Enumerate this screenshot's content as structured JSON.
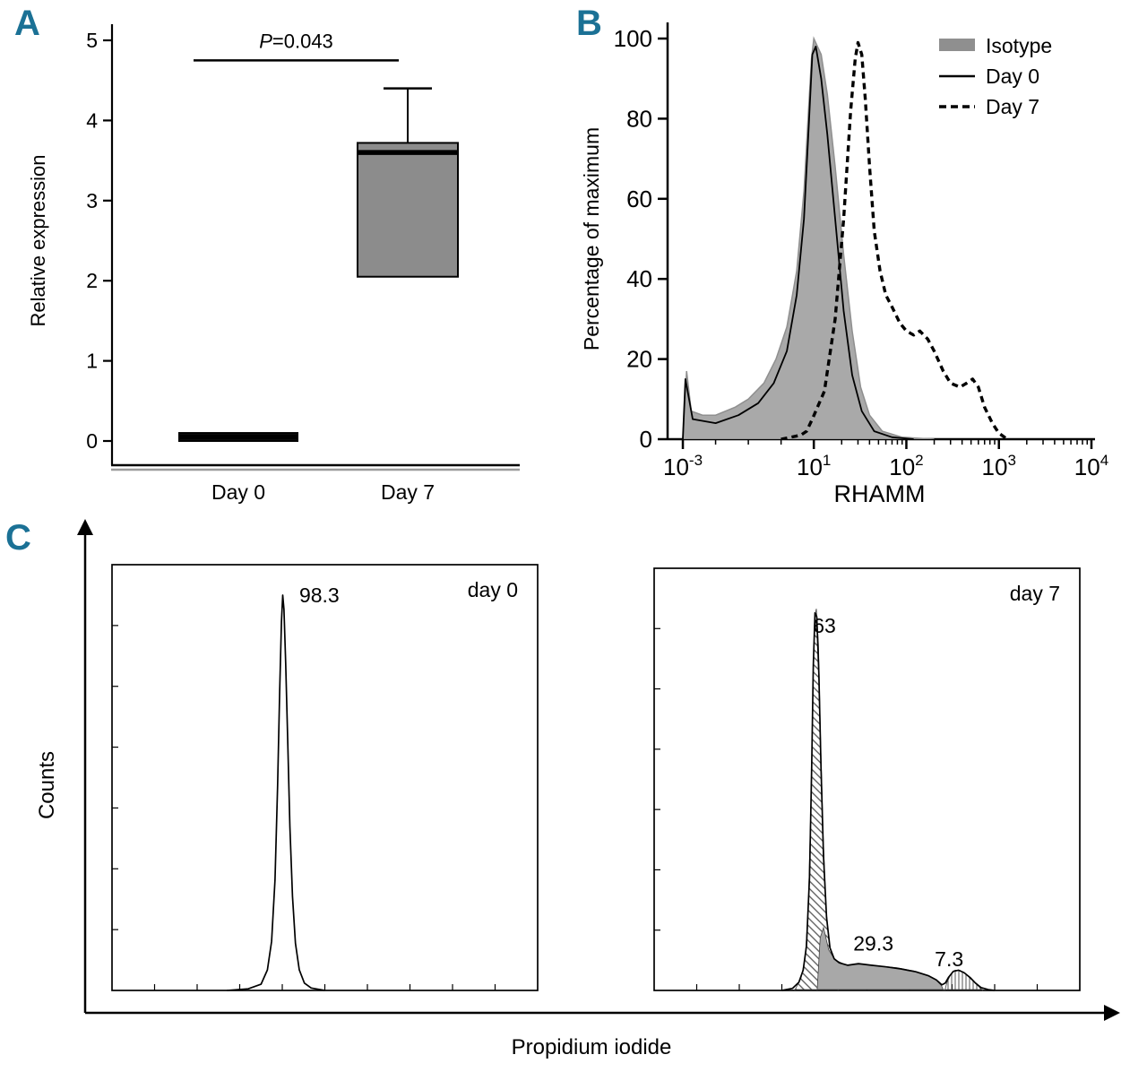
{
  "figure": {
    "background": "#ffffff",
    "accent_color": "#1b7195",
    "panel_labels": {
      "a": "A",
      "b": "B",
      "c": "C"
    }
  },
  "panelC": {
    "ylabel": "Counts",
    "xlabel": "Propidium iodide"
  },
  "chart_data": [
    {
      "id": "panel-a",
      "type": "box",
      "title": "",
      "xlabel": "",
      "ylabel": "Relative expression",
      "ylim": [
        0,
        5
      ],
      "yticks": [
        0,
        1,
        2,
        3,
        4,
        5
      ],
      "categories": [
        "Day 0",
        "Day 7"
      ],
      "boxes": [
        {
          "category": "Day 0",
          "whisker_low": 0.0,
          "q1": 0.0,
          "median": 0.05,
          "q3": 0.1,
          "whisker_high": 0.1,
          "fill": "#111111"
        },
        {
          "category": "Day 7",
          "whisker_low": 2.05,
          "q1": 2.05,
          "median": 3.6,
          "q3": 3.72,
          "whisker_high": 4.4,
          "fill": "#8c8c8c"
        }
      ],
      "significance": {
        "label": "P=0.043",
        "italic": "P",
        "rest": "=0.043",
        "bar_y": 4.75
      }
    },
    {
      "id": "panel-b",
      "type": "line",
      "ylabel": "Percentage of maximum",
      "xlabel": "RHAMM",
      "ylim": [
        0,
        100
      ],
      "yticks": [
        0,
        20,
        40,
        60,
        80,
        100
      ],
      "x_scale": "biexponential-log",
      "x_major_ticks": [
        {
          "label_base": "10",
          "label_exp": "-3",
          "log10": -3
        },
        {
          "label_base": "10",
          "label_exp": "1",
          "log10": 1
        },
        {
          "label_base": "10",
          "label_exp": "2",
          "log10": 2
        },
        {
          "label_base": "10",
          "label_exp": "3",
          "log10": 3
        },
        {
          "label_base": "10",
          "label_exp": "4",
          "log10": 4
        }
      ],
      "legend": [
        {
          "label": "Isotype",
          "swatch": "filled",
          "color": "#8f8f8f"
        },
        {
          "label": "Day 0",
          "swatch": "solid-line",
          "color": "#000000"
        },
        {
          "label": "Day 7",
          "swatch": "dashed-line",
          "color": "#000000"
        }
      ],
      "series": [
        {
          "name": "Isotype",
          "style": "filled",
          "fill": "#a9a9a9",
          "stroke": "#8f8f8f",
          "points": [
            [
              0.001,
              0
            ],
            [
              0.0013,
              17
            ],
            [
              0.0018,
              7
            ],
            [
              0.004,
              6
            ],
            [
              0.01,
              6
            ],
            [
              0.04,
              8
            ],
            [
              0.1,
              10
            ],
            [
              0.3,
              14
            ],
            [
              0.7,
              20
            ],
            [
              1.5,
              28
            ],
            [
              3,
              42
            ],
            [
              5,
              62
            ],
            [
              7,
              83
            ],
            [
              8.5,
              95
            ],
            [
              10,
              100
            ],
            [
              12,
              96
            ],
            [
              14,
              86
            ],
            [
              17,
              68
            ],
            [
              21,
              46
            ],
            [
              26,
              27
            ],
            [
              32,
              13
            ],
            [
              40,
              6
            ],
            [
              55,
              2
            ],
            [
              90,
              0.5
            ],
            [
              200,
              0
            ]
          ]
        },
        {
          "name": "Day 0",
          "style": "solid",
          "stroke": "#000000",
          "points": [
            [
              0.001,
              0
            ],
            [
              0.0012,
              15
            ],
            [
              0.002,
              5
            ],
            [
              0.01,
              4
            ],
            [
              0.05,
              6
            ],
            [
              0.2,
              9
            ],
            [
              0.6,
              14
            ],
            [
              1.5,
              22
            ],
            [
              3,
              36
            ],
            [
              5,
              55
            ],
            [
              7,
              78
            ],
            [
              9,
              96
            ],
            [
              10.5,
              98
            ],
            [
              12,
              90
            ],
            [
              14,
              76
            ],
            [
              17,
              55
            ],
            [
              21,
              32
            ],
            [
              26,
              16
            ],
            [
              33,
              7
            ],
            [
              45,
              2
            ],
            [
              70,
              0.5
            ],
            [
              120,
              0
            ]
          ]
        },
        {
          "name": "Day 7",
          "style": "dashed",
          "stroke": "#000000",
          "points": [
            [
              1,
              0
            ],
            [
              2,
              0.5
            ],
            [
              4,
              1
            ],
            [
              6,
              2
            ],
            [
              9,
              5
            ],
            [
              13,
              12
            ],
            [
              17,
              30
            ],
            [
              21,
              55
            ],
            [
              25,
              82
            ],
            [
              28,
              95
            ],
            [
              30,
              99
            ],
            [
              33,
              96
            ],
            [
              36,
              85
            ],
            [
              40,
              68
            ],
            [
              45,
              52
            ],
            [
              52,
              42
            ],
            [
              60,
              36
            ],
            [
              70,
              33
            ],
            [
              85,
              29
            ],
            [
              100,
              27
            ],
            [
              120,
              26
            ],
            [
              140,
              27
            ],
            [
              170,
              25
            ],
            [
              200,
              22
            ],
            [
              250,
              17
            ],
            [
              300,
              14
            ],
            [
              380,
              13
            ],
            [
              450,
              14
            ],
            [
              520,
              15
            ],
            [
              600,
              13
            ],
            [
              700,
              8
            ],
            [
              850,
              4
            ],
            [
              1000,
              1.5
            ],
            [
              1200,
              0.2
            ]
          ]
        }
      ]
    },
    {
      "id": "panel-c-day0",
      "type": "histogram",
      "corner_label": "day 0",
      "peak_labels": [
        {
          "text": "98.3",
          "x": 0.487,
          "y": 0.088
        }
      ],
      "regions": [],
      "outline": [
        [
          0.27,
          0
        ],
        [
          0.32,
          0.004
        ],
        [
          0.35,
          0.015
        ],
        [
          0.365,
          0.05
        ],
        [
          0.375,
          0.12
        ],
        [
          0.383,
          0.27
        ],
        [
          0.389,
          0.5
        ],
        [
          0.394,
          0.73
        ],
        [
          0.398,
          0.9
        ],
        [
          0.401,
          0.965
        ],
        [
          0.404,
          0.93
        ],
        [
          0.408,
          0.8
        ],
        [
          0.413,
          0.6
        ],
        [
          0.418,
          0.4
        ],
        [
          0.424,
          0.23
        ],
        [
          0.431,
          0.115
        ],
        [
          0.44,
          0.05
        ],
        [
          0.452,
          0.018
        ],
        [
          0.468,
          0.006
        ],
        [
          0.5,
          0
        ]
      ]
    },
    {
      "id": "panel-c-day7",
      "type": "histogram",
      "corner_label": "day 7",
      "peak_labels": [
        {
          "text": "63",
          "x": 0.4,
          "y": 0.153
        },
        {
          "text": "29.3",
          "x": 0.515,
          "y": 0.905
        },
        {
          "text": "7.3",
          "x": 0.693,
          "y": 0.943
        }
      ],
      "regions": [
        {
          "label": "63",
          "fill": "hatch-diagonal",
          "points": [
            [
              0.33,
              0
            ],
            [
              0.345,
              0.03
            ],
            [
              0.355,
              0.08
            ],
            [
              0.362,
              0.2
            ],
            [
              0.368,
              0.45
            ],
            [
              0.373,
              0.75
            ],
            [
              0.377,
              0.92
            ],
            [
              0.381,
              0.94
            ],
            [
              0.386,
              0.85
            ],
            [
              0.391,
              0.62
            ],
            [
              0.397,
              0.38
            ],
            [
              0.404,
              0.2
            ],
            [
              0.412,
              0.11
            ],
            [
              0.42,
              0.08
            ],
            [
              0.432,
              0.066
            ],
            [
              0.432,
              0
            ]
          ]
        },
        {
          "label": "29.3",
          "fill": "solid-gray",
          "color": "#a8a8a8",
          "points": [
            [
              0.383,
              0
            ],
            [
              0.39,
              0.13
            ],
            [
              0.398,
              0.155
            ],
            [
              0.41,
              0.1
            ],
            [
              0.425,
              0.075
            ],
            [
              0.45,
              0.063
            ],
            [
              0.49,
              0.065
            ],
            [
              0.53,
              0.06
            ],
            [
              0.57,
              0.056
            ],
            [
              0.61,
              0.048
            ],
            [
              0.64,
              0.038
            ],
            [
              0.662,
              0.026
            ],
            [
              0.675,
              0.012
            ],
            [
              0.68,
              0
            ]
          ]
        },
        {
          "label": "7.3",
          "fill": "hatch-vertical",
          "points": [
            [
              0.683,
              0
            ],
            [
              0.688,
              0.02
            ],
            [
              0.697,
              0.04
            ],
            [
              0.707,
              0.05
            ],
            [
              0.718,
              0.05
            ],
            [
              0.73,
              0.042
            ],
            [
              0.742,
              0.03
            ],
            [
              0.755,
              0.018
            ],
            [
              0.765,
              0.007
            ],
            [
              0.772,
              0
            ]
          ]
        }
      ],
      "outline": [
        [
          0.3,
          0
        ],
        [
          0.325,
          0.005
        ],
        [
          0.34,
          0.02
        ],
        [
          0.35,
          0.05
        ],
        [
          0.358,
          0.11
        ],
        [
          0.365,
          0.28
        ],
        [
          0.37,
          0.55
        ],
        [
          0.374,
          0.8
        ],
        [
          0.378,
          0.93
        ],
        [
          0.382,
          0.92
        ],
        [
          0.387,
          0.78
        ],
        [
          0.392,
          0.55
        ],
        [
          0.398,
          0.33
        ],
        [
          0.405,
          0.18
        ],
        [
          0.413,
          0.105
        ],
        [
          0.423,
          0.078
        ],
        [
          0.435,
          0.068
        ],
        [
          0.455,
          0.062
        ],
        [
          0.48,
          0.066
        ],
        [
          0.51,
          0.062
        ],
        [
          0.545,
          0.058
        ],
        [
          0.58,
          0.053
        ],
        [
          0.615,
          0.046
        ],
        [
          0.645,
          0.036
        ],
        [
          0.663,
          0.026
        ],
        [
          0.676,
          0.014
        ],
        [
          0.684,
          0.018
        ],
        [
          0.692,
          0.033
        ],
        [
          0.703,
          0.047
        ],
        [
          0.715,
          0.05
        ],
        [
          0.728,
          0.044
        ],
        [
          0.742,
          0.032
        ],
        [
          0.755,
          0.018
        ],
        [
          0.768,
          0.007
        ],
        [
          0.785,
          0.002
        ],
        [
          0.8,
          0
        ]
      ]
    }
  ]
}
